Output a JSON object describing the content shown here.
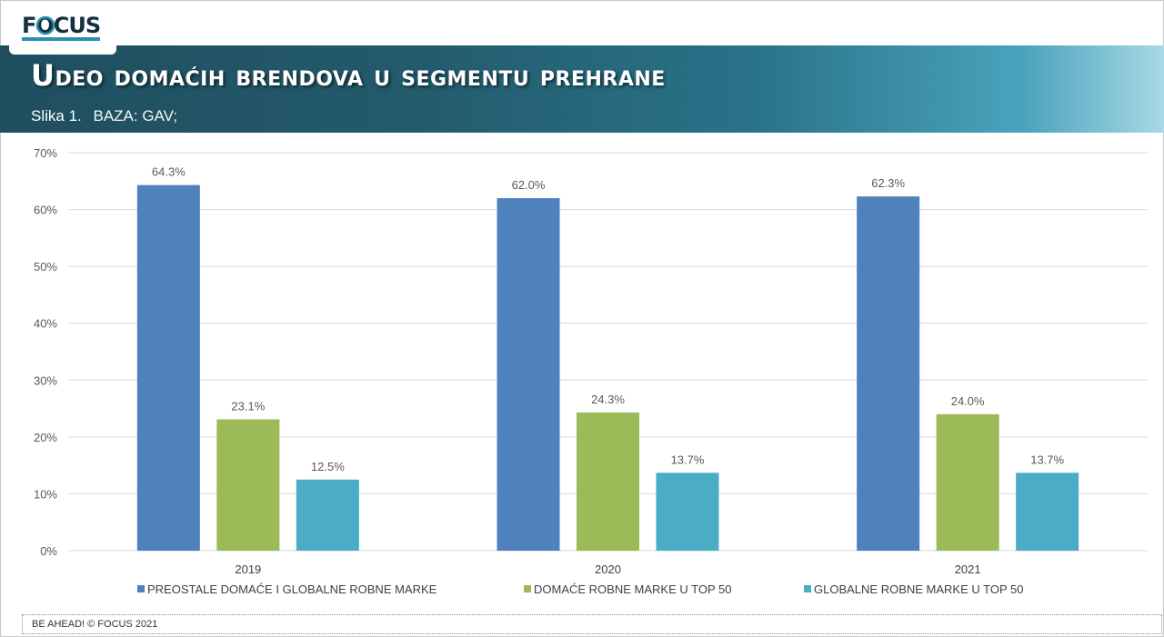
{
  "header": {
    "logo_text": "FOCUS",
    "title": "Udeo domaćih brendova u segmentu prehrane",
    "figure_label": "Slika 1.",
    "base_text": "BAZA: GAV;"
  },
  "footer": {
    "text": "BE AHEAD! © FOCUS 2021"
  },
  "colors": {
    "banner": "#1f4e5f",
    "series1": "#4f81bd",
    "series2": "#9bbb59",
    "series3": "#4bacc6"
  },
  "chart_data": {
    "type": "bar",
    "categories": [
      "2019",
      "2020",
      "2021"
    ],
    "series": [
      {
        "name": "PREOSTALE DOMAĆE I GLOBALNE ROBNE MARKE",
        "values": [
          64.3,
          62.0,
          62.3
        ],
        "color": "#4f81bd"
      },
      {
        "name": "DOMAĆE ROBNE MARKE U TOP 50",
        "values": [
          23.1,
          24.3,
          24.0
        ],
        "color": "#9bbb59"
      },
      {
        "name": "GLOBALNE ROBNE MARKE U TOP 50",
        "values": [
          12.5,
          13.7,
          13.7
        ],
        "color": "#4bacc6"
      }
    ],
    "ylim": [
      0,
      70
    ],
    "yticks": [
      0,
      10,
      20,
      30,
      40,
      50,
      60,
      70
    ],
    "ytick_format": "%",
    "value_label_format": "0.0%",
    "grid": true,
    "legend": "bottom"
  }
}
